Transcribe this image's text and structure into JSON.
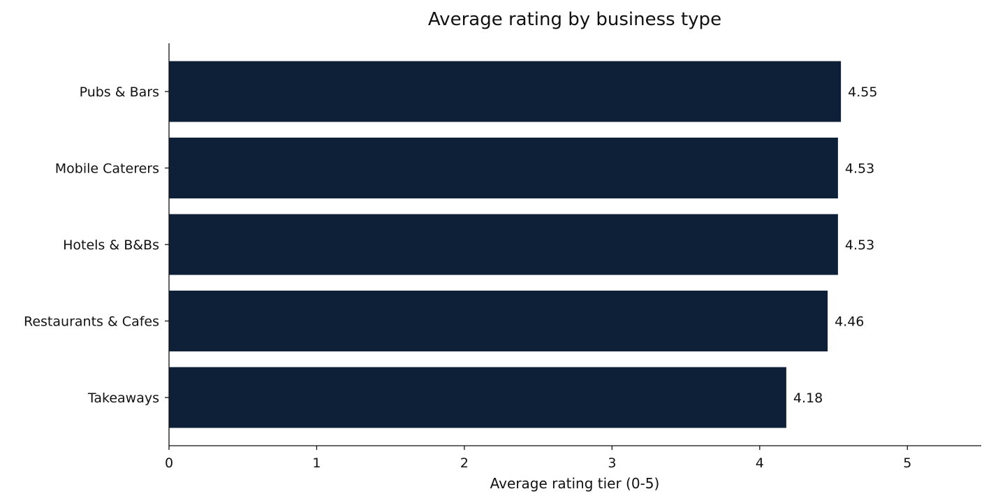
{
  "chart_data": {
    "type": "bar",
    "orientation": "horizontal",
    "title": "Average rating by business type",
    "xlabel": "Average rating tier (0-5)",
    "ylabel": "",
    "categories": [
      "Pubs & Bars",
      "Mobile Caterers",
      "Hotels & B&Bs",
      "Restaurants & Cafes",
      "Takeaways"
    ],
    "values": [
      4.55,
      4.53,
      4.53,
      4.46,
      4.18
    ],
    "value_labels": [
      "4.55",
      "4.53",
      "4.53",
      "4.46",
      "4.18"
    ],
    "xlim": [
      0,
      5.5
    ],
    "xticks": [
      0,
      1,
      2,
      3,
      4,
      5
    ],
    "xtick_labels": [
      "0",
      "1",
      "2",
      "3",
      "4",
      "5"
    ],
    "bar_color": "#0e1f38",
    "grid": false,
    "legend": "none"
  }
}
